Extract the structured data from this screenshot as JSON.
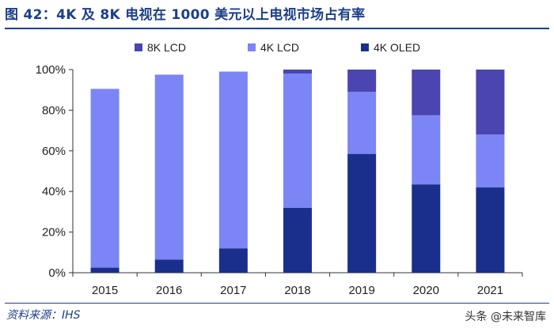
{
  "header": {
    "title": "图 42：4K 及 8K 电视在 1000 美元以上电视市场占有率"
  },
  "footer": {
    "source": "资料来源：IHS",
    "watermark": "头条 @未来智库"
  },
  "chart_data": {
    "type": "bar",
    "stacked": true,
    "title": "",
    "xlabel": "",
    "ylabel": "",
    "ylim": [
      0,
      100
    ],
    "y_ticks": [
      "0%",
      "20%",
      "40%",
      "60%",
      "80%",
      "100%"
    ],
    "categories": [
      "2015",
      "2016",
      "2017",
      "2018",
      "2019",
      "2020",
      "2021"
    ],
    "series": [
      {
        "name": "4K OLED",
        "color": "#1a2f8c",
        "values": [
          2.5,
          6.5,
          12,
          32,
          58.5,
          43.5,
          42
        ]
      },
      {
        "name": "4K LCD",
        "color": "#7b85f5",
        "values": [
          88,
          91,
          87,
          66,
          30.5,
          34,
          26
        ]
      },
      {
        "name": "8K LCD",
        "color": "#4a45b0",
        "values": [
          0,
          0,
          0,
          2,
          11,
          22.5,
          32
        ]
      }
    ],
    "legend": {
      "order": [
        "8K LCD",
        "4K LCD",
        "4K OLED"
      ],
      "position": "top"
    }
  }
}
